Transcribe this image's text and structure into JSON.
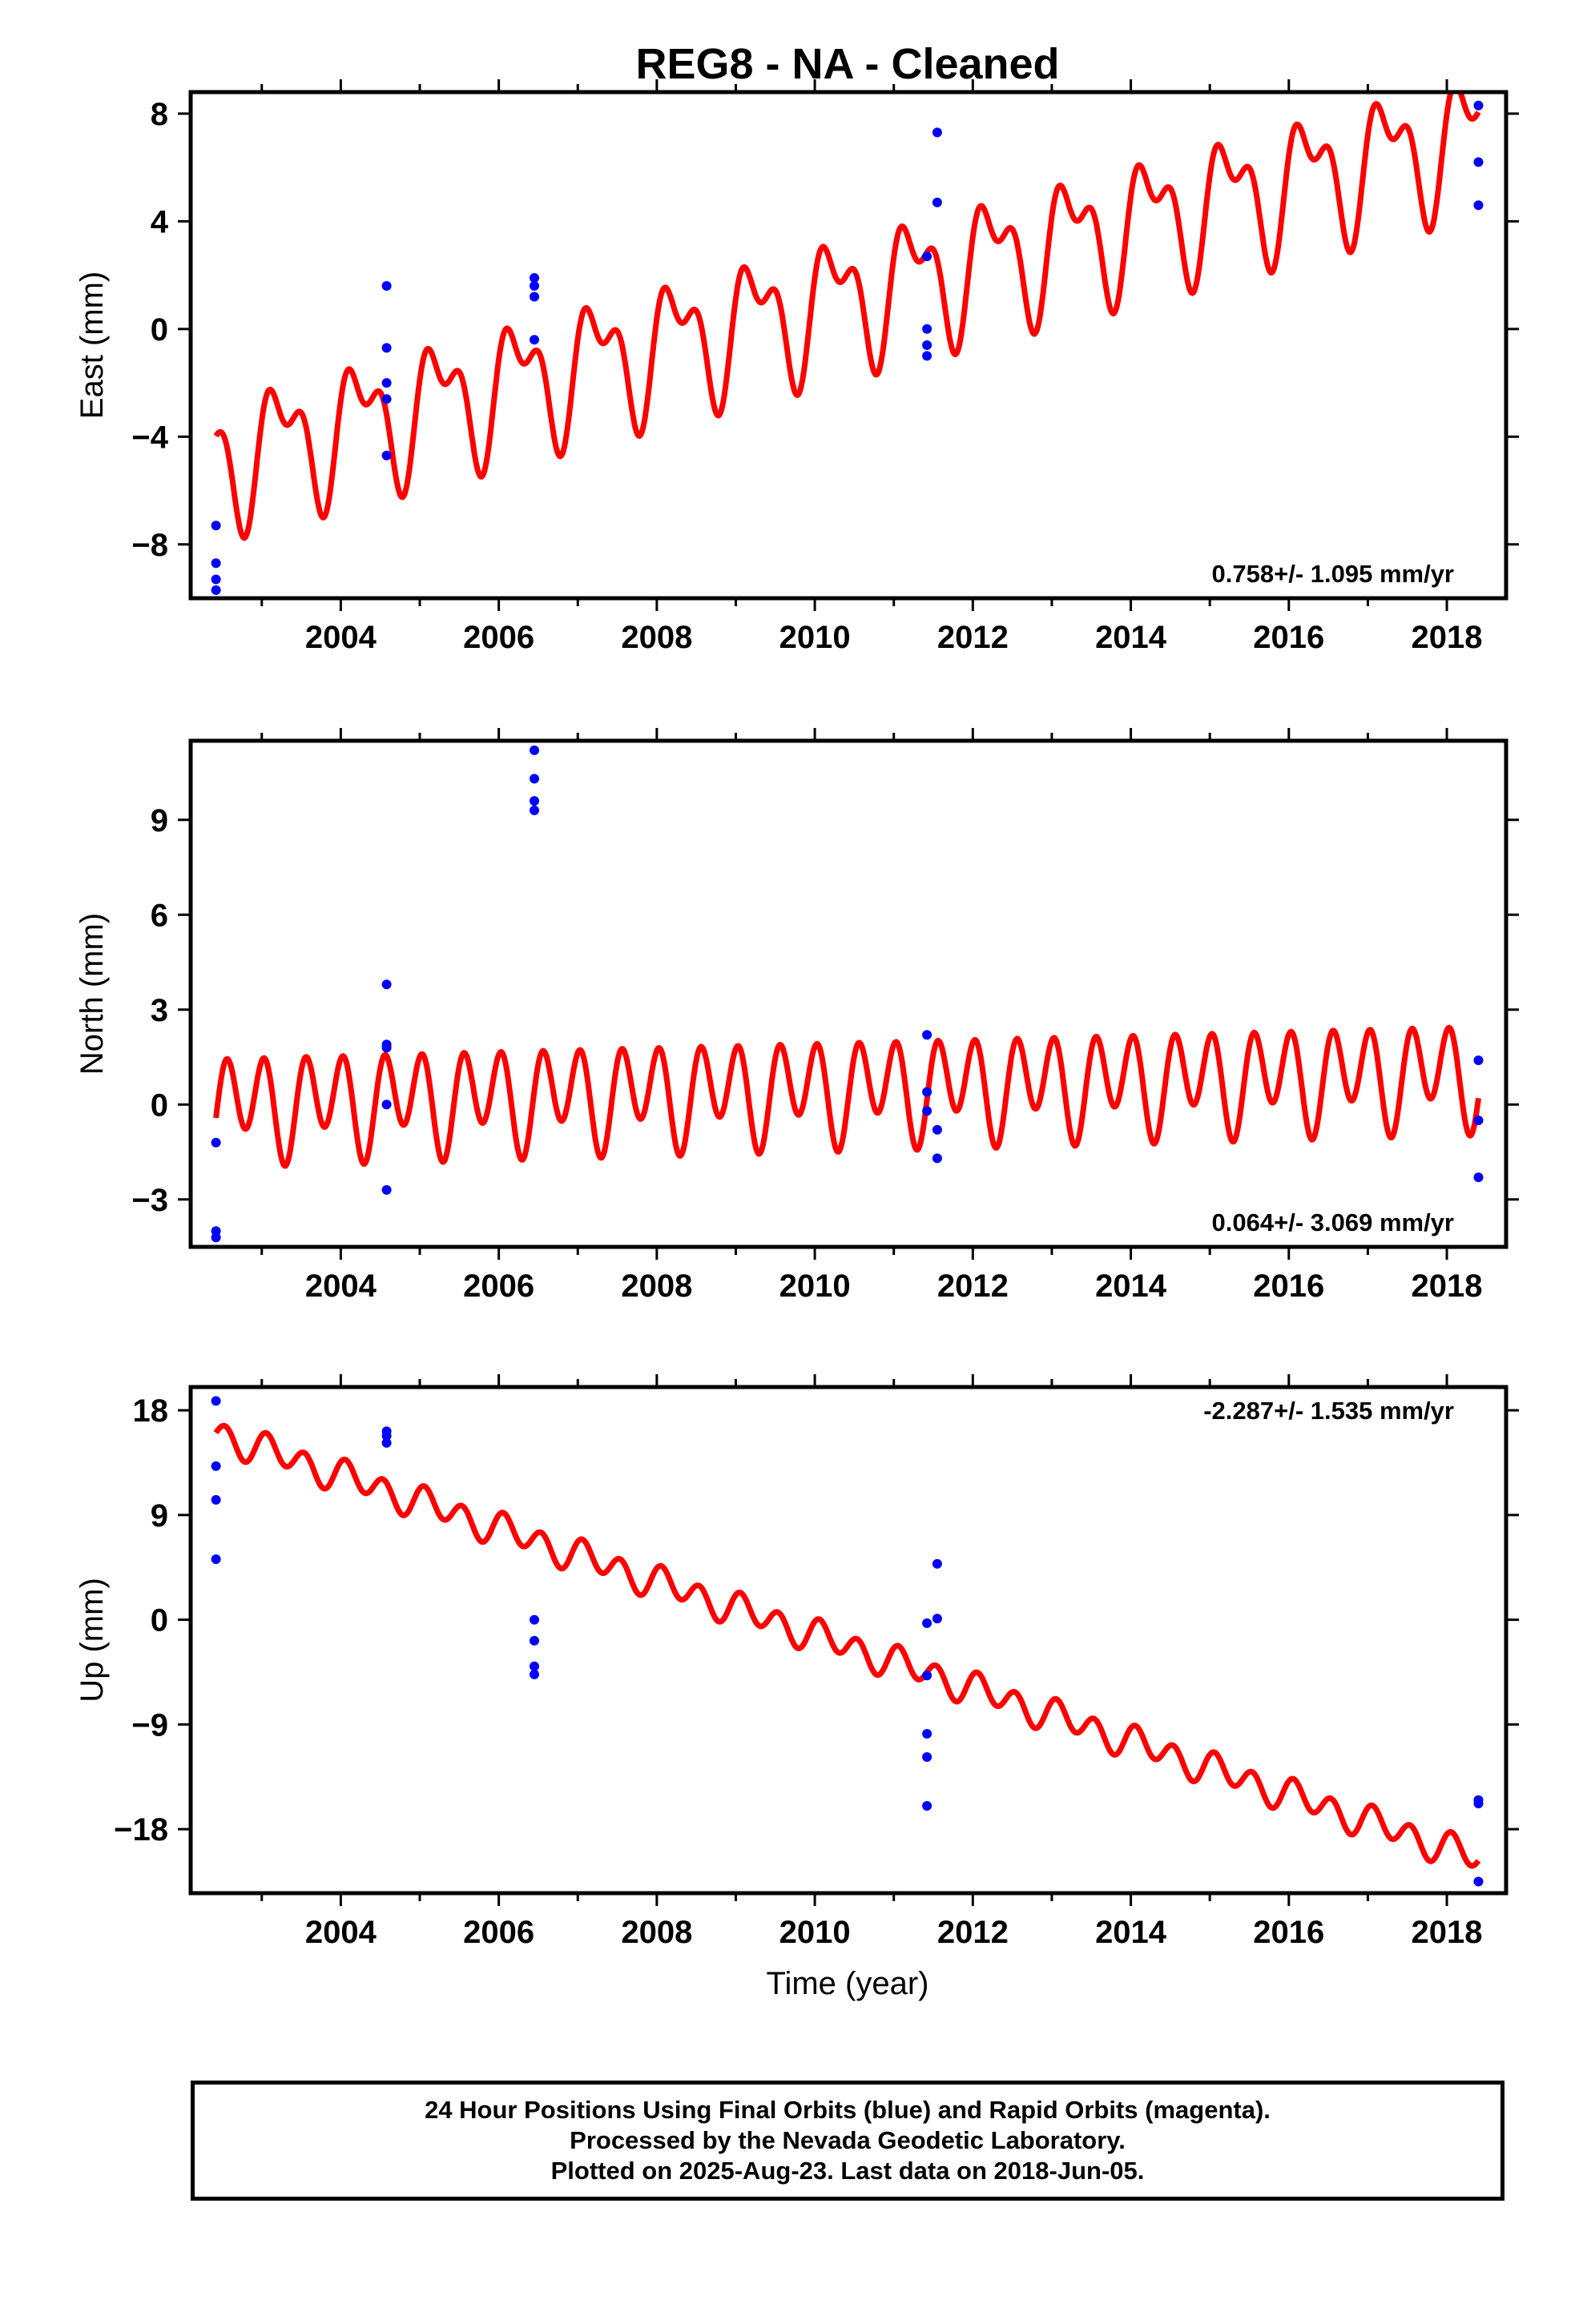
{
  "chart_data": {
    "title": "REG8  - NA - Cleaned",
    "xlabel": "Time (year)",
    "x_ticks": [
      2004,
      2006,
      2008,
      2010,
      2012,
      2014,
      2016,
      2018
    ],
    "colors": {
      "model_line": "#ff0000",
      "final_orbits": "#0000ff",
      "rapid_orbits": "#ff00ff"
    },
    "panels": [
      {
        "name": "east",
        "type": "scatter+line",
        "ylabel": "East (mm)",
        "ylim": [
          -10,
          8.8
        ],
        "xlim": [
          2002.1,
          2018.75
        ],
        "yticks": [
          -8,
          -4,
          0,
          4,
          8
        ],
        "rate_label": "0.758+/- 1.095 mm/yr",
        "model": {
          "t0": 2002.42,
          "offset": -4.9,
          "rate": 0.758,
          "annual": 2.0,
          "semiannual": 1.2,
          "phase": 2.66,
          "phase2": 0.0
        },
        "points": [
          [
            2002.42,
            -7.3
          ],
          [
            2002.42,
            -8.7
          ],
          [
            2002.42,
            -9.3
          ],
          [
            2002.42,
            -9.7
          ],
          [
            2004.58,
            1.6
          ],
          [
            2004.58,
            -0.7
          ],
          [
            2004.58,
            -2.0
          ],
          [
            2004.58,
            -2.6
          ],
          [
            2004.58,
            -4.7
          ],
          [
            2006.45,
            1.9
          ],
          [
            2006.45,
            1.6
          ],
          [
            2006.45,
            1.2
          ],
          [
            2006.45,
            -0.4
          ],
          [
            2011.42,
            2.7
          ],
          [
            2011.42,
            0.0
          ],
          [
            2011.42,
            -0.6
          ],
          [
            2011.42,
            -1.0
          ],
          [
            2011.55,
            7.3
          ],
          [
            2011.55,
            4.7
          ],
          [
            2018.4,
            8.3
          ],
          [
            2018.4,
            6.2
          ],
          [
            2018.4,
            4.6
          ]
        ]
      },
      {
        "name": "north",
        "type": "scatter+line",
        "ylabel": "North (mm)",
        "ylim": [
          -4.5,
          11.5
        ],
        "xlim": [
          2002.1,
          2018.75
        ],
        "yticks": [
          -3,
          0,
          3,
          6,
          9
        ],
        "rate_label": "0.064+/- 3.069 mm/yr",
        "model": {
          "t0": 2002.42,
          "offset": 0.0,
          "rate": 0.064,
          "annual": 0.6,
          "semiannual": 1.4,
          "phase": 5.5,
          "phase2": 0.0
        },
        "points": [
          [
            2002.42,
            -1.2
          ],
          [
            2002.42,
            -4.0
          ],
          [
            2002.42,
            -4.2
          ],
          [
            2004.58,
            3.8
          ],
          [
            2004.58,
            1.9
          ],
          [
            2004.58,
            1.8
          ],
          [
            2004.58,
            0.0
          ],
          [
            2004.58,
            -2.7
          ],
          [
            2006.45,
            11.2
          ],
          [
            2006.45,
            10.3
          ],
          [
            2006.45,
            9.6
          ],
          [
            2006.45,
            9.3
          ],
          [
            2011.42,
            2.2
          ],
          [
            2011.42,
            0.4
          ],
          [
            2011.42,
            -0.2
          ],
          [
            2011.55,
            -0.8
          ],
          [
            2011.55,
            -1.7
          ],
          [
            2018.4,
            1.4
          ],
          [
            2018.4,
            -0.5
          ],
          [
            2018.4,
            -2.3
          ]
        ]
      },
      {
        "name": "up",
        "type": "scatter+line",
        "ylabel": "Up (mm)",
        "ylim": [
          -23.5,
          20
        ],
        "xlim": [
          2002.1,
          2018.75
        ],
        "yticks": [
          -18,
          -9,
          0,
          9,
          18
        ],
        "rate_label": "-2.287+/- 1.535 mm/yr",
        "model": {
          "t0": 2002.42,
          "offset": 16.0,
          "rate": -2.287,
          "annual": 0.5,
          "semiannual": 1.2,
          "phase": 3.0,
          "phase2": 0.0
        },
        "points": [
          [
            2002.42,
            18.8
          ],
          [
            2002.42,
            13.2
          ],
          [
            2002.42,
            10.3
          ],
          [
            2002.42,
            5.2
          ],
          [
            2004.58,
            16.2
          ],
          [
            2004.58,
            15.8
          ],
          [
            2004.58,
            15.2
          ],
          [
            2006.45,
            0.0
          ],
          [
            2006.45,
            -1.8
          ],
          [
            2006.45,
            -4.0
          ],
          [
            2006.45,
            -4.7
          ],
          [
            2011.42,
            -0.3
          ],
          [
            2011.42,
            -4.8
          ],
          [
            2011.42,
            -9.8
          ],
          [
            2011.42,
            -11.8
          ],
          [
            2011.42,
            -16.0
          ],
          [
            2011.55,
            4.8
          ],
          [
            2011.55,
            0.1
          ],
          [
            2018.4,
            -15.5
          ],
          [
            2018.4,
            -15.8
          ],
          [
            2018.4,
            -22.5
          ]
        ]
      }
    ]
  },
  "footer": {
    "line1": "24 Hour Positions Using Final Orbits (blue) and Rapid Orbits (magenta).",
    "line2": "Processed by the Nevada Geodetic Laboratory.",
    "line3": "Plotted on 2025-Aug-23. Last data on 2018-Jun-05."
  }
}
